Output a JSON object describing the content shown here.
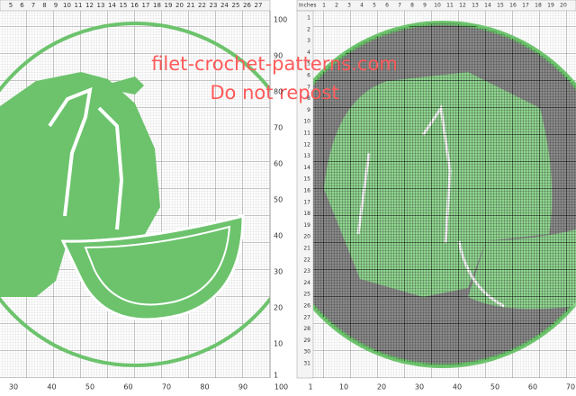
{
  "left_panel": {
    "top_ruler": [
      5,
      6,
      7,
      8,
      9,
      10,
      11,
      12,
      13,
      14,
      15,
      16,
      17,
      18,
      19,
      20,
      21,
      22,
      23,
      24,
      25,
      26,
      27
    ],
    "bottom_axis": [
      30,
      40,
      50,
      60,
      70,
      80,
      90,
      100
    ],
    "right_axis": [
      100,
      90,
      80,
      70,
      60,
      50,
      40,
      30,
      20,
      10,
      1
    ]
  },
  "right_panel": {
    "ruler_label": "Inches",
    "top_ruler": [
      1,
      2,
      3,
      4,
      5,
      6,
      7,
      8,
      9,
      10,
      11,
      12,
      13,
      14,
      15,
      16,
      17,
      18,
      19,
      20
    ],
    "left_axis": [
      1,
      2,
      3,
      4,
      5,
      6,
      7,
      8,
      9,
      10,
      11,
      12,
      13,
      14,
      15,
      16,
      17,
      18,
      19,
      20,
      21,
      22,
      23,
      24,
      25,
      26,
      27,
      28,
      29,
      30,
      31
    ],
    "bottom_axis": [
      1,
      10,
      20,
      30,
      40,
      50,
      60,
      70
    ]
  },
  "watermark": {
    "site": "filet-crochet-patterns.com",
    "notice": "Do not repost"
  }
}
